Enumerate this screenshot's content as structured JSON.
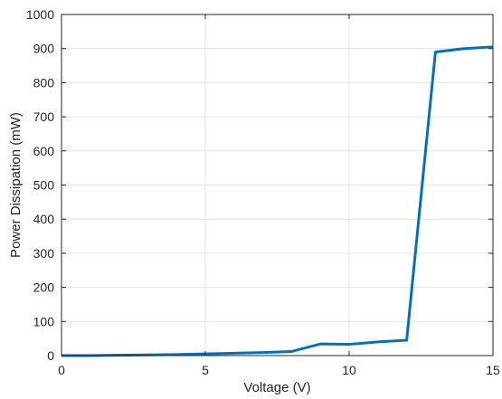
{
  "chart_data": {
    "type": "line",
    "xlabel": "Voltage (V)",
    "ylabel": "Power Dissipation (mW)",
    "xlim": [
      0,
      15
    ],
    "ylim": [
      0,
      1000
    ],
    "xticks": [
      0,
      5,
      10,
      15
    ],
    "yticks": [
      0,
      100,
      200,
      300,
      400,
      500,
      600,
      700,
      800,
      900,
      1000
    ],
    "grid": true,
    "series": [
      {
        "color": "#0072BD",
        "x": [
          0,
          1,
          2,
          3,
          4,
          5,
          6,
          7,
          8,
          9,
          10,
          11,
          12,
          13,
          14,
          15
        ],
        "y": [
          0,
          0,
          1,
          2,
          3,
          5,
          7,
          9,
          12,
          34,
          33,
          40,
          45,
          890,
          900,
          905
        ]
      }
    ]
  }
}
